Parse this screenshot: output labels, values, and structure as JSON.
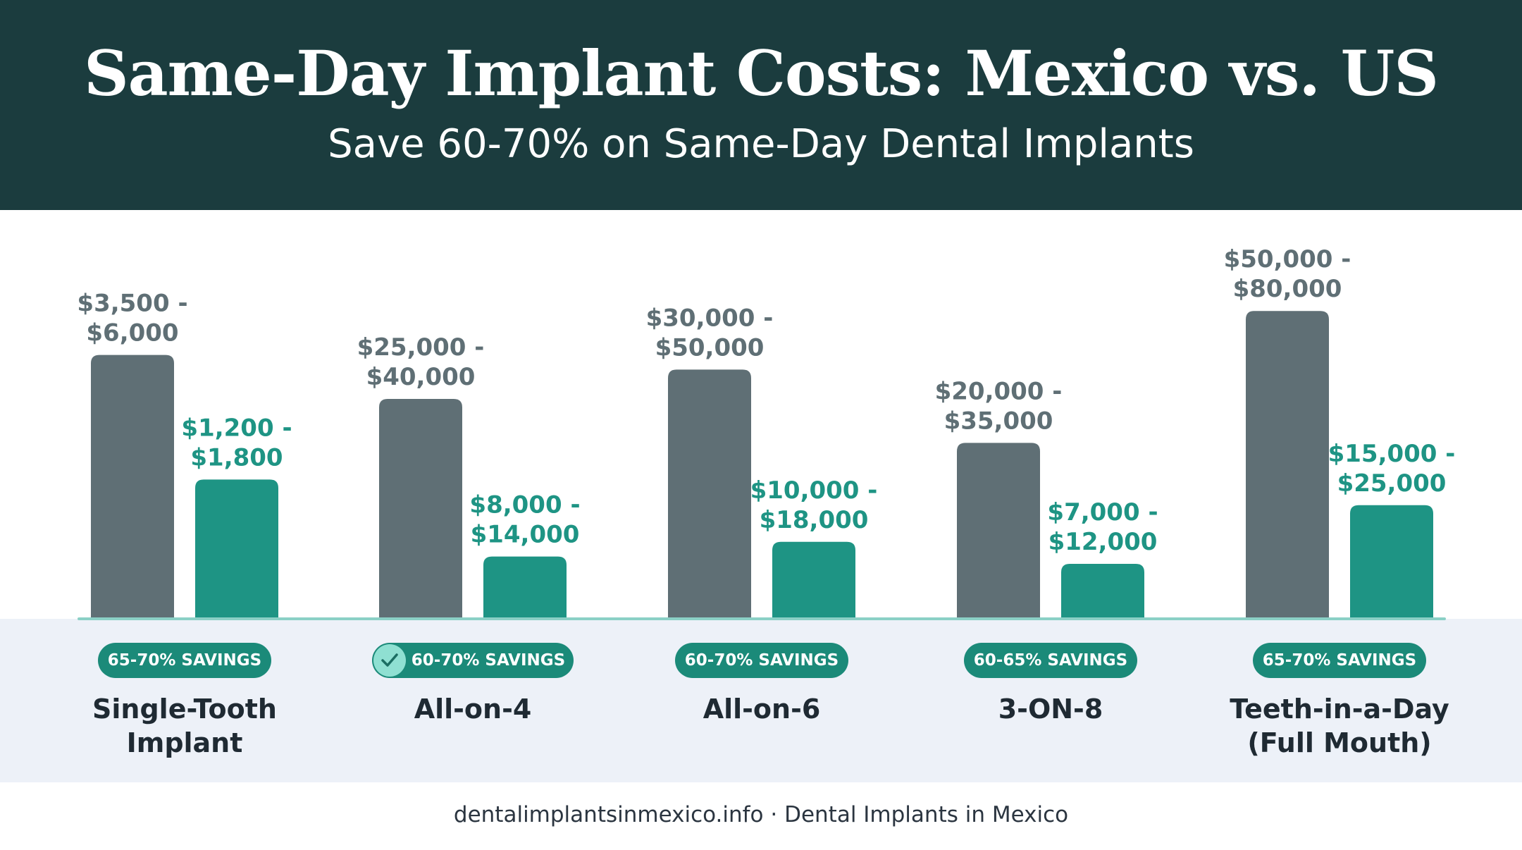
{
  "header": {
    "title": "Same-Day Implant Costs: Mexico vs. US",
    "subtitle": "Save 60-70% on Same-Day Dental Implants"
  },
  "colors": {
    "header_bg": "#1b3c3e",
    "us_bar": "#5f6f75",
    "mexico_bar": "#1e9484",
    "savings_pill": "#1b8a79",
    "baseline": "#8bd0c6",
    "lower_band": "#edf1f8"
  },
  "chart_data": {
    "type": "bar",
    "categories": [
      [
        "Single-Tooth",
        "Implant"
      ],
      [
        "All-on-4"
      ],
      [
        "All-on-6"
      ],
      [
        "3-ON-8"
      ],
      [
        "Teeth-in-a-Day",
        "(Full Mouth)"
      ]
    ],
    "series": [
      {
        "color": "#5f6f75",
        "labels": [
          [
            "$3,500 -",
            "$6,000"
          ],
          [
            "$25,000 -",
            "$40,000"
          ],
          [
            "$30,000 -",
            "$50,000"
          ],
          [
            "$20,000 -",
            "$35,000"
          ],
          [
            "$50,000 -",
            "$80,000"
          ]
        ],
        "bar_scale": [
          0.72,
          0.6,
          0.68,
          0.48,
          0.84
        ]
      },
      {
        "color": "#1e9484",
        "labels": [
          [
            "$1,200 -",
            "$1,800"
          ],
          [
            "$8,000 -",
            "$14,000"
          ],
          [
            "$10,000 -",
            "$18,000"
          ],
          [
            "$7,000 -",
            "$12,000"
          ],
          [
            "$15,000 -",
            "$25,000"
          ]
        ],
        "bar_scale": [
          0.38,
          0.17,
          0.21,
          0.15,
          0.31
        ]
      }
    ],
    "savings": [
      "65-70% SAVINGS",
      "60-70% SAVINGS",
      "60-70% SAVINGS",
      "60-65% SAVINGS",
      "65-70% SAVINGS"
    ],
    "checked_savings_index": 1,
    "grid": false,
    "legend": "none"
  },
  "footer": {
    "text": "dentalimplantsinmexico.info · Dental Implants in Mexico"
  },
  "icons": {
    "savings_check": "check-icon"
  }
}
